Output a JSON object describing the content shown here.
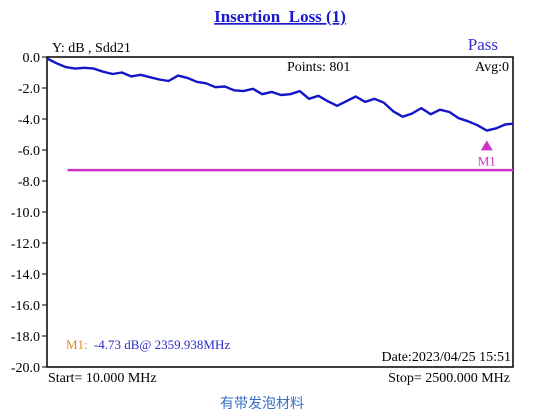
{
  "header": {
    "title": "Insertion_Loss (1)",
    "status": "Pass"
  },
  "readouts": {
    "y_label": "Y: dB , Sdd21",
    "points": "Points: 801",
    "avg": "Avg:0",
    "date": "Date:2023/04/25  15:51",
    "start": "Start= 10.000 MHz",
    "stop": "Stop=   2500.000 MHz"
  },
  "marker": {
    "label": "M1",
    "readout_prefix": "M1:",
    "readout_value": "-4.73 dB@ 2359.938MHz",
    "freq_mhz": 2359.938,
    "value_db": -4.73,
    "color": "#cc33cc",
    "prefix_color": "#e08a1e",
    "value_color": "#2a2acc"
  },
  "caption": "有带发泡材料",
  "colors": {
    "trace": "#1515c8",
    "limit": "#cc33cc",
    "title": "#1a1acc"
  },
  "chart_data": {
    "type": "line",
    "title": "Insertion_Loss (1)",
    "ylabel": "Y: dB , Sdd21",
    "xlim": [
      10,
      2500
    ],
    "ylim": [
      -20,
      0
    ],
    "y_ticks": [
      "0.0",
      "-2.0",
      "-4.0",
      "-6.0",
      "-8.0",
      "-10.0",
      "-12.0",
      "-14.0",
      "-16.0",
      "-18.0",
      "-20.0"
    ],
    "grid": false,
    "series": [
      {
        "x": [
          10,
          60,
          110,
          160,
          210,
          260,
          310,
          360,
          410,
          460,
          510,
          560,
          610,
          660,
          710,
          760,
          810,
          860,
          910,
          960,
          1010,
          1060,
          1110,
          1160,
          1210,
          1260,
          1310,
          1360,
          1410,
          1460,
          1510,
          1560,
          1610,
          1660,
          1710,
          1760,
          1810,
          1860,
          1910,
          1960,
          2010,
          2060,
          2110,
          2160,
          2210,
          2260,
          2310,
          2360,
          2410,
          2460,
          2500
        ],
        "y": [
          -0.1,
          -0.4,
          -0.65,
          -0.75,
          -0.7,
          -0.75,
          -0.95,
          -1.1,
          -1.0,
          -1.25,
          -1.15,
          -1.3,
          -1.45,
          -1.55,
          -1.2,
          -1.35,
          -1.6,
          -1.7,
          -1.95,
          -1.9,
          -2.15,
          -2.2,
          -2.05,
          -2.4,
          -2.25,
          -2.45,
          -2.4,
          -2.2,
          -2.7,
          -2.5,
          -2.85,
          -3.15,
          -2.85,
          -2.55,
          -2.9,
          -2.7,
          -2.95,
          -3.5,
          -3.85,
          -3.65,
          -3.3,
          -3.7,
          -3.4,
          -3.55,
          -3.95,
          -4.15,
          -4.4,
          -4.75,
          -4.6,
          -4.35,
          -4.3
        ]
      },
      {
        "x": [
          120,
          2500
        ],
        "y": [
          -7.3,
          -7.3
        ]
      }
    ]
  }
}
